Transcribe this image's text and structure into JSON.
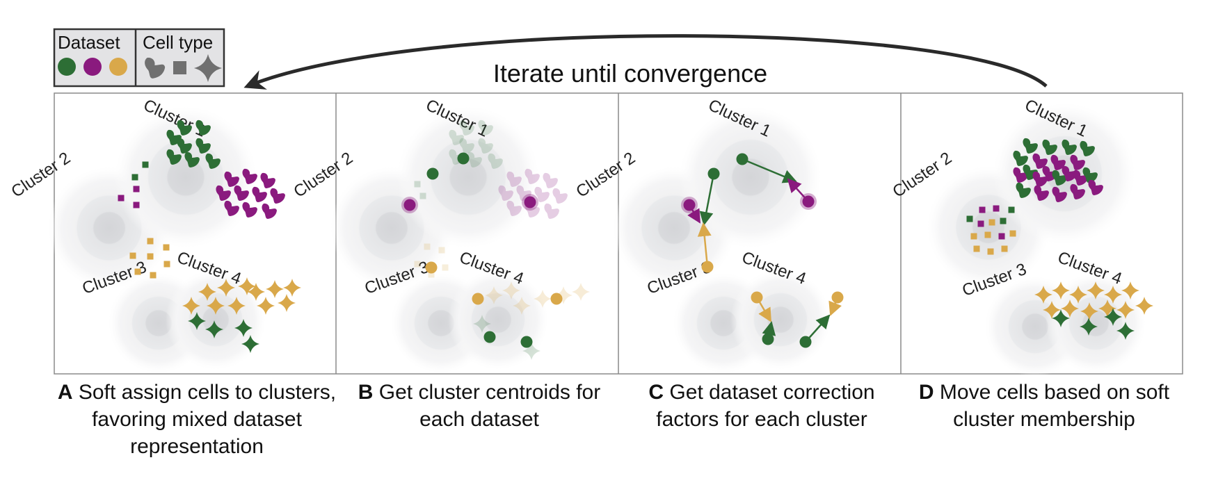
{
  "legend": {
    "dataset_title": "Dataset",
    "celltype_title": "Cell type"
  },
  "iterate_label": "Iterate until convergence",
  "colors": {
    "green": "#2d6e35",
    "purple": "#8a1a7e",
    "gold": "#d9a84a",
    "gray_shape": "#707070",
    "panel_border": "#8a8a8a"
  },
  "cluster_labels": [
    "Cluster 1",
    "Cluster 2",
    "Cluster 3",
    "Cluster 4"
  ],
  "panels": [
    {
      "letter": "A",
      "caption": "Soft assign cells to clusters, favoring mixed dataset representation"
    },
    {
      "letter": "B",
      "caption": "Get cluster centroids for each dataset"
    },
    {
      "letter": "C",
      "caption": "Get dataset correction factors for each cluster"
    },
    {
      "letter": "D",
      "caption": "Move cells based on soft cluster membership"
    }
  ]
}
